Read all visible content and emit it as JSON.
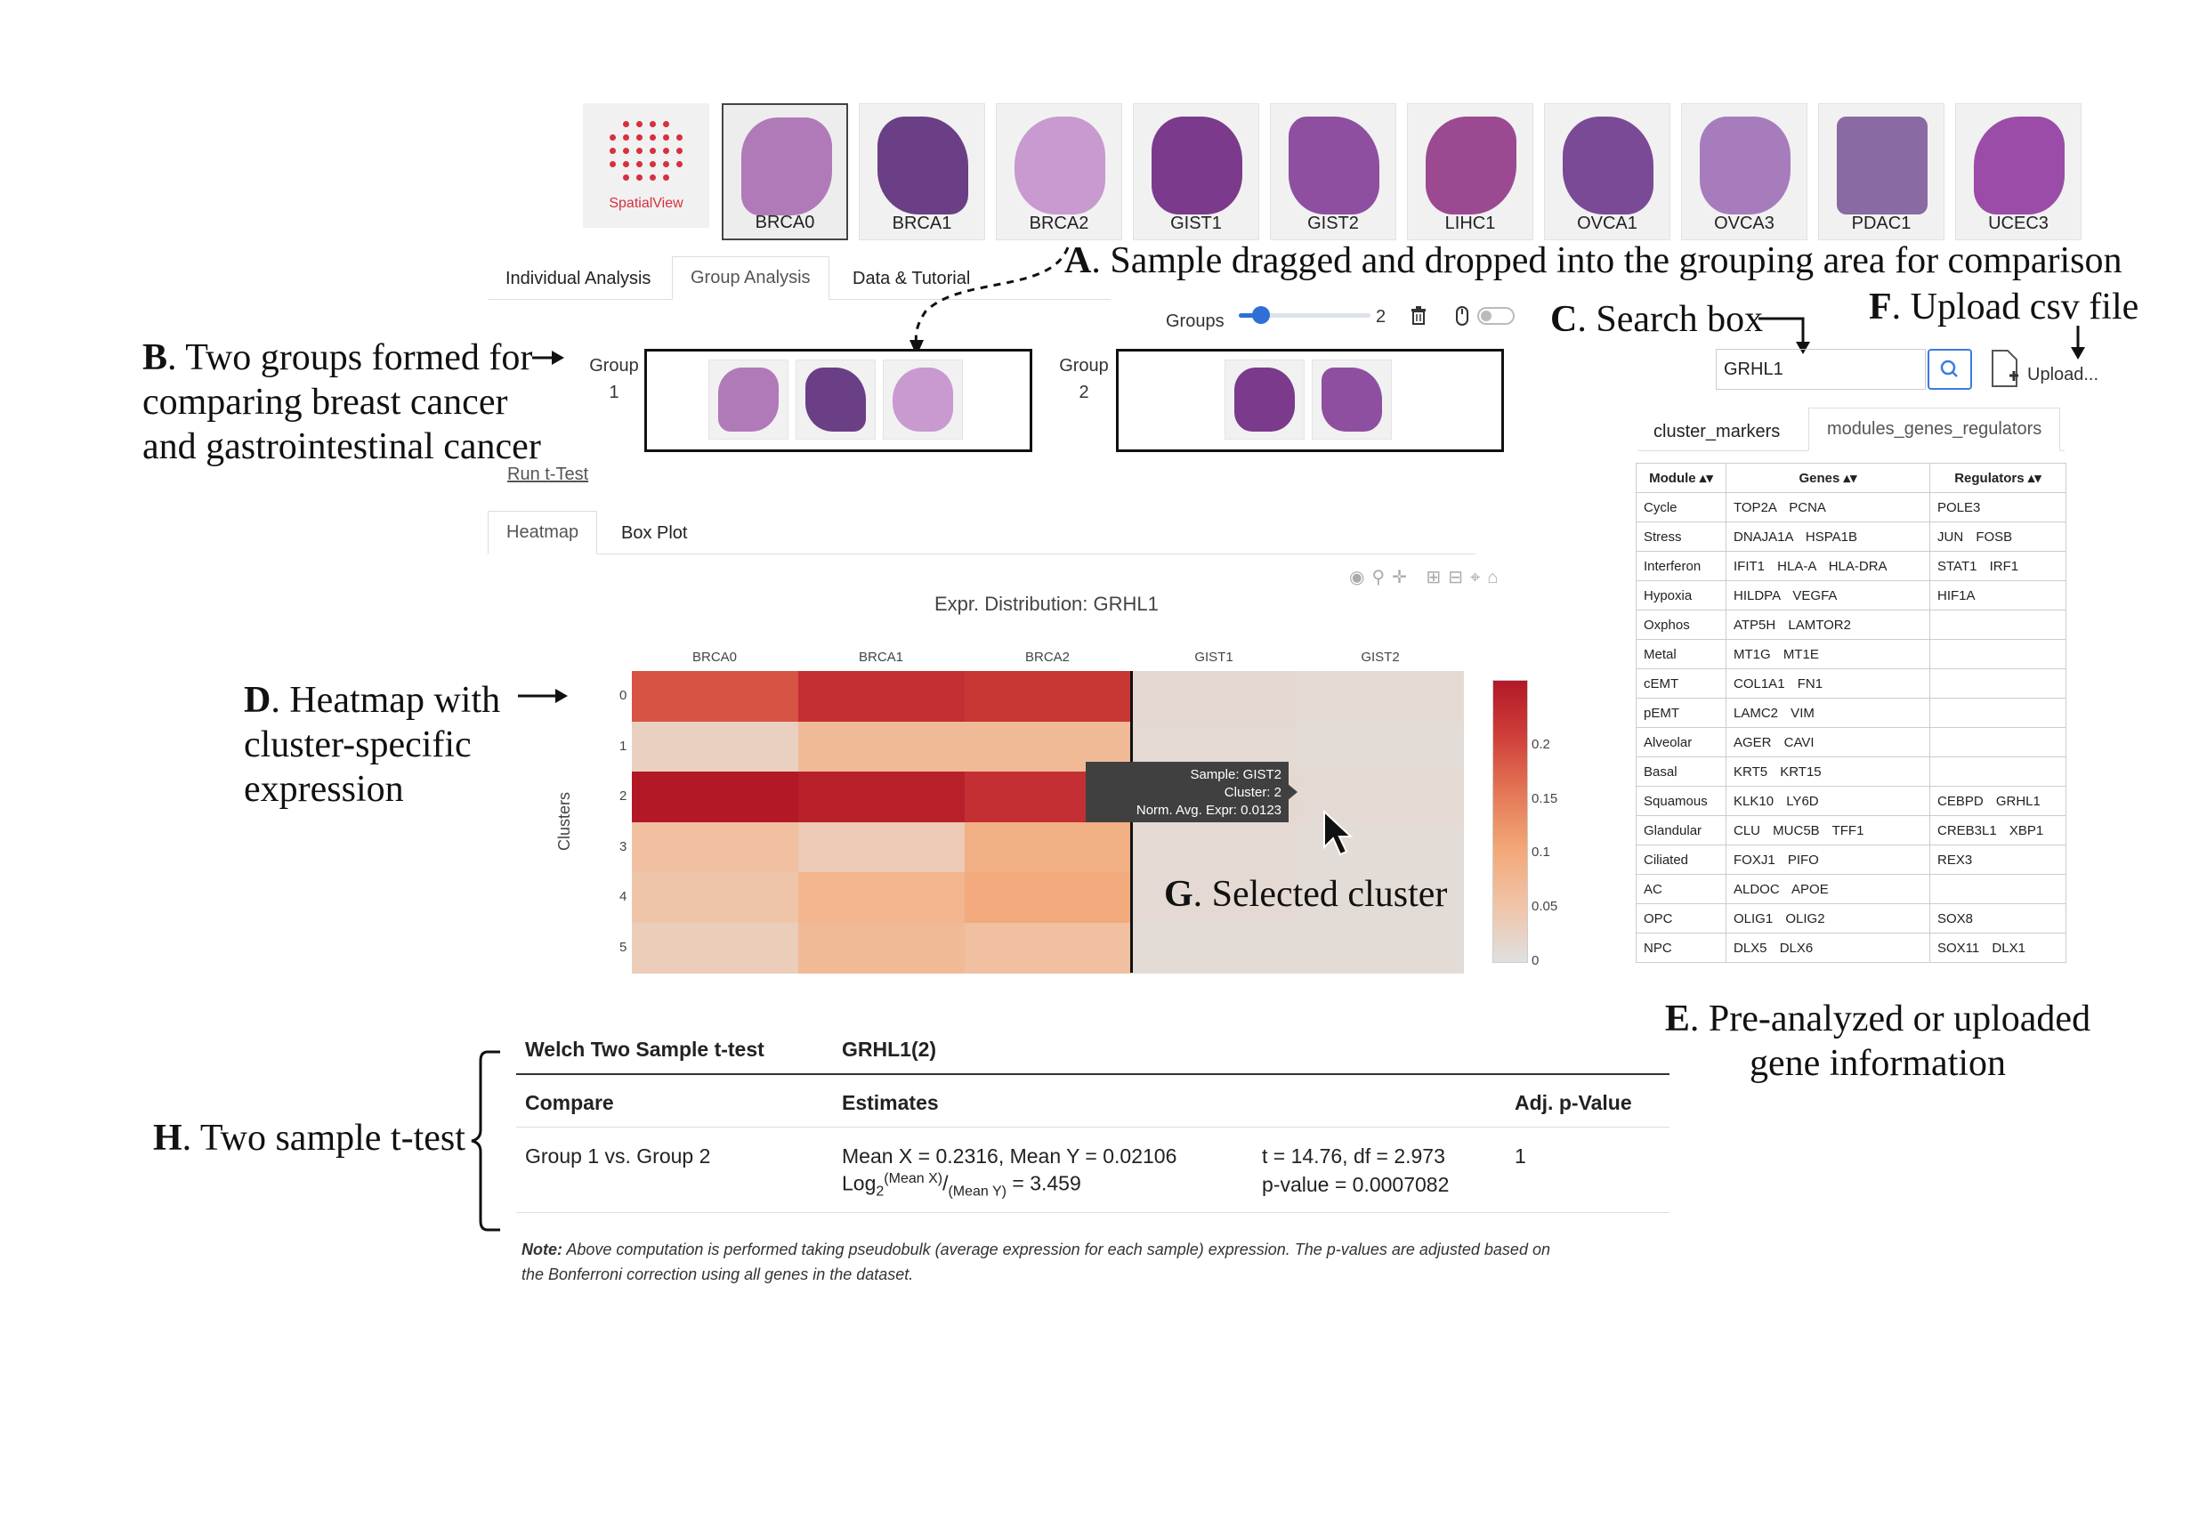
{
  "logo": {
    "text": "SpatialView"
  },
  "samples": [
    {
      "label": "BRCA0",
      "color": "#b07ab8"
    },
    {
      "label": "BRCA1",
      "color": "#6a3f86"
    },
    {
      "label": "BRCA2",
      "color": "#c89ad0"
    },
    {
      "label": "GIST1",
      "color": "#7c3a8c"
    },
    {
      "label": "GIST2",
      "color": "#8e4fa0"
    },
    {
      "label": "LIHC1",
      "color": "#9b4a92"
    },
    {
      "label": "OVCA1",
      "color": "#7a4a96"
    },
    {
      "label": "OVCA3",
      "color": "#a77cbc"
    },
    {
      "label": "PDAC1",
      "color": "#8a6aa2"
    },
    {
      "label": "UCEC3",
      "color": "#9a4ca8"
    }
  ],
  "tabs": {
    "individual": "Individual Analysis",
    "group": "Group Analysis",
    "data": "Data & Tutorial"
  },
  "groups": {
    "label": "Groups",
    "count": "2",
    "count_value": 2,
    "group1_label": "Group",
    "group1_num": "1",
    "group2_label": "Group",
    "group2_num": "2"
  },
  "run_ttest": "Run t-Test",
  "search": {
    "value": "GRHL1"
  },
  "upload": {
    "label": "Upload..."
  },
  "right_tabs": {
    "cluster_markers": "cluster_markers",
    "modules": "modules_genes_regulators"
  },
  "gene_table": {
    "headers": [
      "Module",
      "Genes",
      "Regulators"
    ],
    "rows": [
      [
        "Cycle",
        "TOP2A PCNA",
        "POLE3"
      ],
      [
        "Stress",
        "DNAJA1A HSPA1B",
        "JUN FOSB"
      ],
      [
        "Interferon",
        "IFIT1 HLA-A HLA-DRA",
        "STAT1 IRF1"
      ],
      [
        "Hypoxia",
        "HILDPA VEGFA",
        "HIF1A"
      ],
      [
        "Oxphos",
        "ATP5H LAMTOR2",
        ""
      ],
      [
        "Metal",
        "MT1G MT1E",
        ""
      ],
      [
        "cEMT",
        "COL1A1 FN1",
        ""
      ],
      [
        "pEMT",
        "LAMC2 VIM",
        ""
      ],
      [
        "Alveolar",
        "AGER CAVI",
        ""
      ],
      [
        "Basal",
        "KRT5 KRT15",
        ""
      ],
      [
        "Squamous",
        "KLK10 LY6D",
        "CEBPD GRHL1"
      ],
      [
        "Glandular",
        "CLU MUC5B TFF1",
        "CREB3L1 XBP1"
      ],
      [
        "Ciliated",
        "FOXJ1 PIFO",
        "REX3"
      ],
      [
        "AC",
        "ALDOC APOE",
        ""
      ],
      [
        "OPC",
        "OLIG1 OLIG2",
        "SOX8"
      ],
      [
        "NPC",
        "DLX5 DLX6",
        "SOX11 DLX1"
      ]
    ]
  },
  "plot_tabs": {
    "heatmap": "Heatmap",
    "boxplot": "Box Plot"
  },
  "chart_data": {
    "type": "heatmap",
    "title": "Expr. Distribution: GRHL1",
    "ylabel": "Clusters",
    "columns": [
      "BRCA0",
      "BRCA1",
      "BRCA2",
      "GIST1",
      "GIST2"
    ],
    "rows": [
      "0",
      "1",
      "2",
      "3",
      "4",
      "5"
    ],
    "values": [
      [
        0.19,
        0.23,
        0.22,
        0.015,
        0.012
      ],
      [
        0.03,
        0.07,
        0.07,
        0.012,
        0.01
      ],
      [
        0.26,
        0.25,
        0.23,
        0.015,
        0.0123
      ],
      [
        0.06,
        0.04,
        0.09,
        0.012,
        0.01
      ],
      [
        0.05,
        0.08,
        0.1,
        0.012,
        0.01
      ],
      [
        0.035,
        0.07,
        0.06,
        0.01,
        0.01
      ]
    ],
    "colorbar_ticks": [
      "0.2",
      "0.15",
      "0.1",
      "0.05",
      "0"
    ],
    "colorbar_range": [
      0,
      0.26
    ],
    "tooltip": {
      "sample": "Sample: GIST2",
      "cluster": "Cluster: 2",
      "expr": "Norm. Avg. Expr: 0.0123"
    }
  },
  "ttest": {
    "title": "Welch Two Sample t-test",
    "gene": "GRHL1(2)",
    "h_compare": "Compare",
    "h_estimates": "Estimates",
    "h_adjp": "Adj. p-Value",
    "compare": "Group 1 vs. Group 2",
    "means": "Mean X = 0.2316, Mean Y = 0.02106",
    "log_prefix": "Log",
    "log_sub": "2",
    "log_sup": "(Mean X)",
    "log_slash": "/",
    "log_den": "(Mean Y)",
    "log_value": " = 3.459",
    "tstat": "t = 14.76, df = 2.973",
    "pval": "p-value = 0.0007082",
    "adjp": "1",
    "note_bold": "Note:",
    "note_line1": " Above computation is performed taking pseudobulk (average expression for each sample) expression. The p-values are adjusted based on",
    "note_line2": "the Bonferroni correction using all genes in the dataset."
  },
  "annotations": {
    "a_letter": "A",
    "a_text": ". Sample dragged and dropped into the grouping area for comparison",
    "b_letter": "B",
    "b_text1": ". Two groups formed for",
    "b_text2": "comparing breast cancer",
    "b_text3": "and gastrointestinal cancer",
    "c_letter": "C",
    "c_text": ". Search box",
    "d_letter": "D",
    "d_text1": ". Heatmap with",
    "d_text2": "cluster-specific",
    "d_text3": "expression",
    "e_letter": "E",
    "e_text1": ". Pre-analyzed or uploaded",
    "e_text2": "gene information",
    "f_letter": "F",
    "f_text": ". Upload csv file",
    "g_letter": "G",
    "g_text": ". Selected cluster",
    "h_letter": "H",
    "h_text": ". Two sample t-test"
  }
}
